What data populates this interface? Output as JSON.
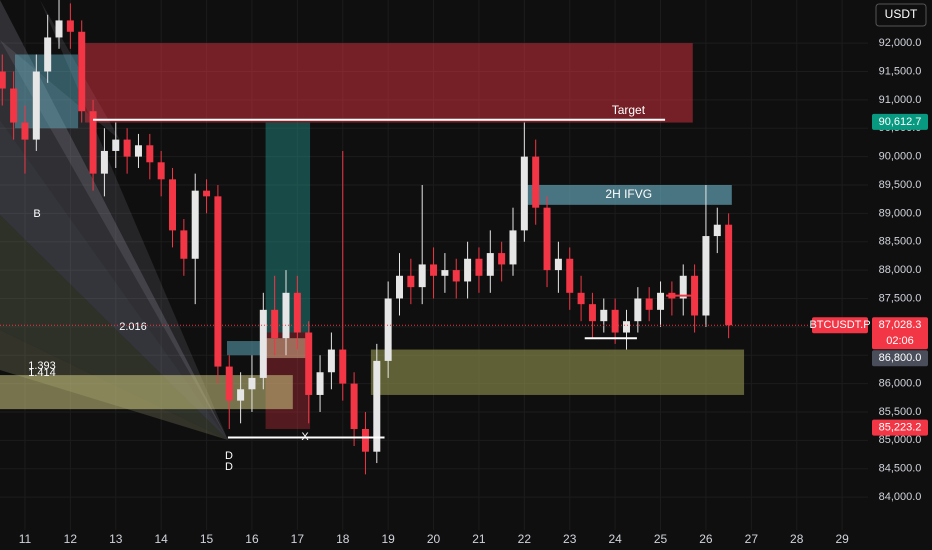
{
  "chart_data": {
    "type": "candlestick",
    "currency": "USDT",
    "xlim": [
      10.45,
      29.57
    ],
    "xticks": [
      11,
      12,
      13,
      14,
      15,
      16,
      17,
      18,
      19,
      20,
      21,
      22,
      23,
      24,
      25,
      26,
      27,
      28,
      29
    ],
    "ylim": [
      83420,
      92760
    ],
    "yticks": [
      {
        "value": 84000,
        "label": "84,000.0"
      },
      {
        "value": 84500,
        "label": "84,500.0"
      },
      {
        "value": 85000,
        "label": "85,000.0"
      },
      {
        "value": 85500,
        "label": "85,500.0"
      },
      {
        "value": 86000,
        "label": "86,000.0"
      },
      {
        "value": 86500,
        "label": "86,500.0"
      },
      {
        "value": 87000,
        "label": "87,000.0"
      },
      {
        "value": 87500,
        "label": "87,500.0"
      },
      {
        "value": 88000,
        "label": "88,000.0"
      },
      {
        "value": 88500,
        "label": "88,500.0"
      },
      {
        "value": 89000,
        "label": "89,000.0"
      },
      {
        "value": 89500,
        "label": "89,500.0"
      },
      {
        "value": 90000,
        "label": "90,000.0"
      },
      {
        "value": 90500,
        "label": "90,500.0"
      },
      {
        "value": 91000,
        "label": "91,000.0"
      },
      {
        "value": 91500,
        "label": "91,500.0"
      },
      {
        "value": 92000,
        "label": "92,000.0"
      }
    ],
    "grid": true,
    "up_color": "#e6e6e6",
    "down_color": "#f23645",
    "x": [
      10.5,
      10.75,
      11,
      11.25,
      11.5,
      11.75,
      12,
      12.25,
      12.5,
      12.75,
      13,
      13.25,
      13.5,
      13.75,
      14,
      14.25,
      14.5,
      14.75,
      15,
      15.25,
      15.5,
      15.75,
      16,
      16.25,
      16.5,
      16.75,
      17,
      17.25,
      17.5,
      17.75,
      18,
      18.25,
      18.5,
      18.75,
      19,
      19.25,
      19.5,
      19.75,
      20,
      20.25,
      20.5,
      20.75,
      21,
      21.25,
      21.5,
      21.75,
      22,
      22.25,
      22.5,
      22.75,
      23,
      23.25,
      23.5,
      23.75,
      24,
      24.25,
      24.5,
      24.75,
      25,
      25.25,
      25.5,
      25.75,
      26,
      26.25,
      26.5
    ],
    "open": [
      91500,
      91200,
      90600,
      90300,
      91500,
      92100,
      92400,
      92200,
      90800,
      89700,
      90100,
      90300,
      90000,
      90200,
      89900,
      89600,
      88700,
      88200,
      89400,
      89300,
      86300,
      85700,
      85900,
      86100,
      87300,
      86800,
      87600,
      86900,
      85800,
      86200,
      86600,
      86000,
      85200,
      84800,
      86400,
      87500,
      87900,
      87700,
      88100,
      87900,
      88000,
      87800,
      88200,
      87900,
      88300,
      88100,
      88700,
      90000,
      89100,
      88000,
      88200,
      87600,
      87400,
      87100,
      87300,
      86900,
      87100,
      87500,
      87300,
      87600,
      87500,
      87900,
      87200,
      88600,
      88800
    ],
    "high": [
      91800,
      91500,
      90900,
      91800,
      92500,
      92800,
      92700,
      92400,
      91000,
      90500,
      90600,
      90500,
      90400,
      90400,
      90100,
      89800,
      88900,
      89700,
      89600,
      89500,
      86500,
      86200,
      86500,
      87600,
      87900,
      88000,
      87900,
      87100,
      86500,
      86900,
      90100,
      86200,
      85500,
      86700,
      87800,
      88300,
      88200,
      89500,
      88400,
      88300,
      88200,
      88500,
      88400,
      88700,
      88500,
      89100,
      90600,
      90300,
      89300,
      88500,
      88400,
      87900,
      87600,
      87500,
      87500,
      87300,
      87700,
      87700,
      87800,
      87800,
      88100,
      88100,
      89500,
      89100,
      89000
    ],
    "low": [
      90900,
      90300,
      89700,
      90100,
      91300,
      91900,
      91900,
      90600,
      89400,
      89300,
      89800,
      89700,
      89800,
      89600,
      89300,
      88400,
      87900,
      87400,
      89000,
      86000,
      85200,
      85300,
      85500,
      85900,
      86500,
      86500,
      86600,
      85300,
      85500,
      85900,
      85700,
      84900,
      84400,
      84600,
      86100,
      87200,
      87400,
      87400,
      87500,
      87600,
      87500,
      87500,
      87600,
      87600,
      87800,
      87900,
      88500,
      88800,
      87700,
      87600,
      87300,
      87100,
      86800,
      86900,
      86700,
      86600,
      86900,
      87100,
      87000,
      87200,
      87200,
      86900,
      87000,
      88300,
      86800
    ],
    "close": [
      91200,
      90600,
      90300,
      91500,
      92100,
      92400,
      92200,
      90800,
      89700,
      90100,
      90300,
      90000,
      90200,
      89900,
      89600,
      88700,
      88200,
      89400,
      89300,
      86300,
      85700,
      85900,
      86100,
      87300,
      86800,
      87600,
      86900,
      85800,
      86200,
      86600,
      86000,
      85200,
      84800,
      86400,
      87500,
      87900,
      87700,
      88100,
      87900,
      88000,
      87800,
      88200,
      87900,
      88300,
      88100,
      88700,
      90000,
      89100,
      88000,
      88200,
      87600,
      87400,
      87100,
      87300,
      86900,
      87100,
      87500,
      87300,
      87600,
      87500,
      87900,
      87200,
      88600,
      88800,
      87028
    ],
    "zones": [
      {
        "x": [
          12.32,
          25.71
        ],
        "y": [
          90600,
          92000
        ],
        "color": "rgba(242,54,69,0.45)"
      },
      {
        "x": [
          10.78,
          12.17
        ],
        "y": [
          90500,
          91800
        ],
        "color": "rgba(100,180,200,0.45)"
      },
      {
        "x": [
          22.03,
          26.57
        ],
        "y": [
          89150,
          89500
        ],
        "color": "rgba(110,185,205,0.6)",
        "label": "2H IFVG"
      },
      {
        "x": [
          16.3,
          17.28
        ],
        "y": [
          86900,
          90600
        ],
        "color": "rgba(38,166,154,0.4)"
      },
      {
        "x": [
          16.3,
          17.28
        ],
        "y": [
          85200,
          86900
        ],
        "color": "rgba(242,54,69,0.3)"
      },
      {
        "x": [
          10.45,
          16.9
        ],
        "y": [
          85550,
          86150
        ],
        "color": "rgba(205,200,130,0.55)"
      },
      {
        "x": [
          18.62,
          26.84
        ],
        "y": [
          85800,
          86600
        ],
        "color": "rgba(150,150,80,0.6)"
      },
      {
        "x": [
          15.45,
          16.3
        ],
        "y": [
          86500,
          86750
        ],
        "color": "rgba(100,180,200,0.5)"
      },
      {
        "x": [
          16.3,
          17.2
        ],
        "y": [
          86450,
          86800
        ],
        "color": "rgba(230,190,150,0.5)"
      }
    ],
    "levels": [
      {
        "x": [
          12.5,
          25.1
        ],
        "y": 90650,
        "color": "#ffffff",
        "label": "Target"
      },
      {
        "x": [
          23.33,
          24.48
        ],
        "y": 86800,
        "color": "#ffffff"
      },
      {
        "x": [
          15.47,
          18.92
        ],
        "y": 85050,
        "color": "#ffffff"
      },
      {
        "x": [
          25.12,
          25.75
        ],
        "y": 87550,
        "color": "#f23645"
      }
    ],
    "annotations": [
      "B",
      "D",
      "D",
      "X",
      "2.016",
      "1.393",
      "1.414"
    ],
    "price_labels": [
      {
        "label": "90,612.7",
        "value": 90612.7,
        "color": "#089981"
      },
      {
        "name": "BTCUSDT.P",
        "label": "87,028.3",
        "value": 87028.3,
        "color": "#f23645",
        "countdown": "02:06"
      },
      {
        "label": "86,800.0",
        "value": 86800,
        "color": "#4a4e5a"
      },
      {
        "label": "85,223.2",
        "value": 85223.2,
        "color": "#f23645"
      }
    ]
  }
}
